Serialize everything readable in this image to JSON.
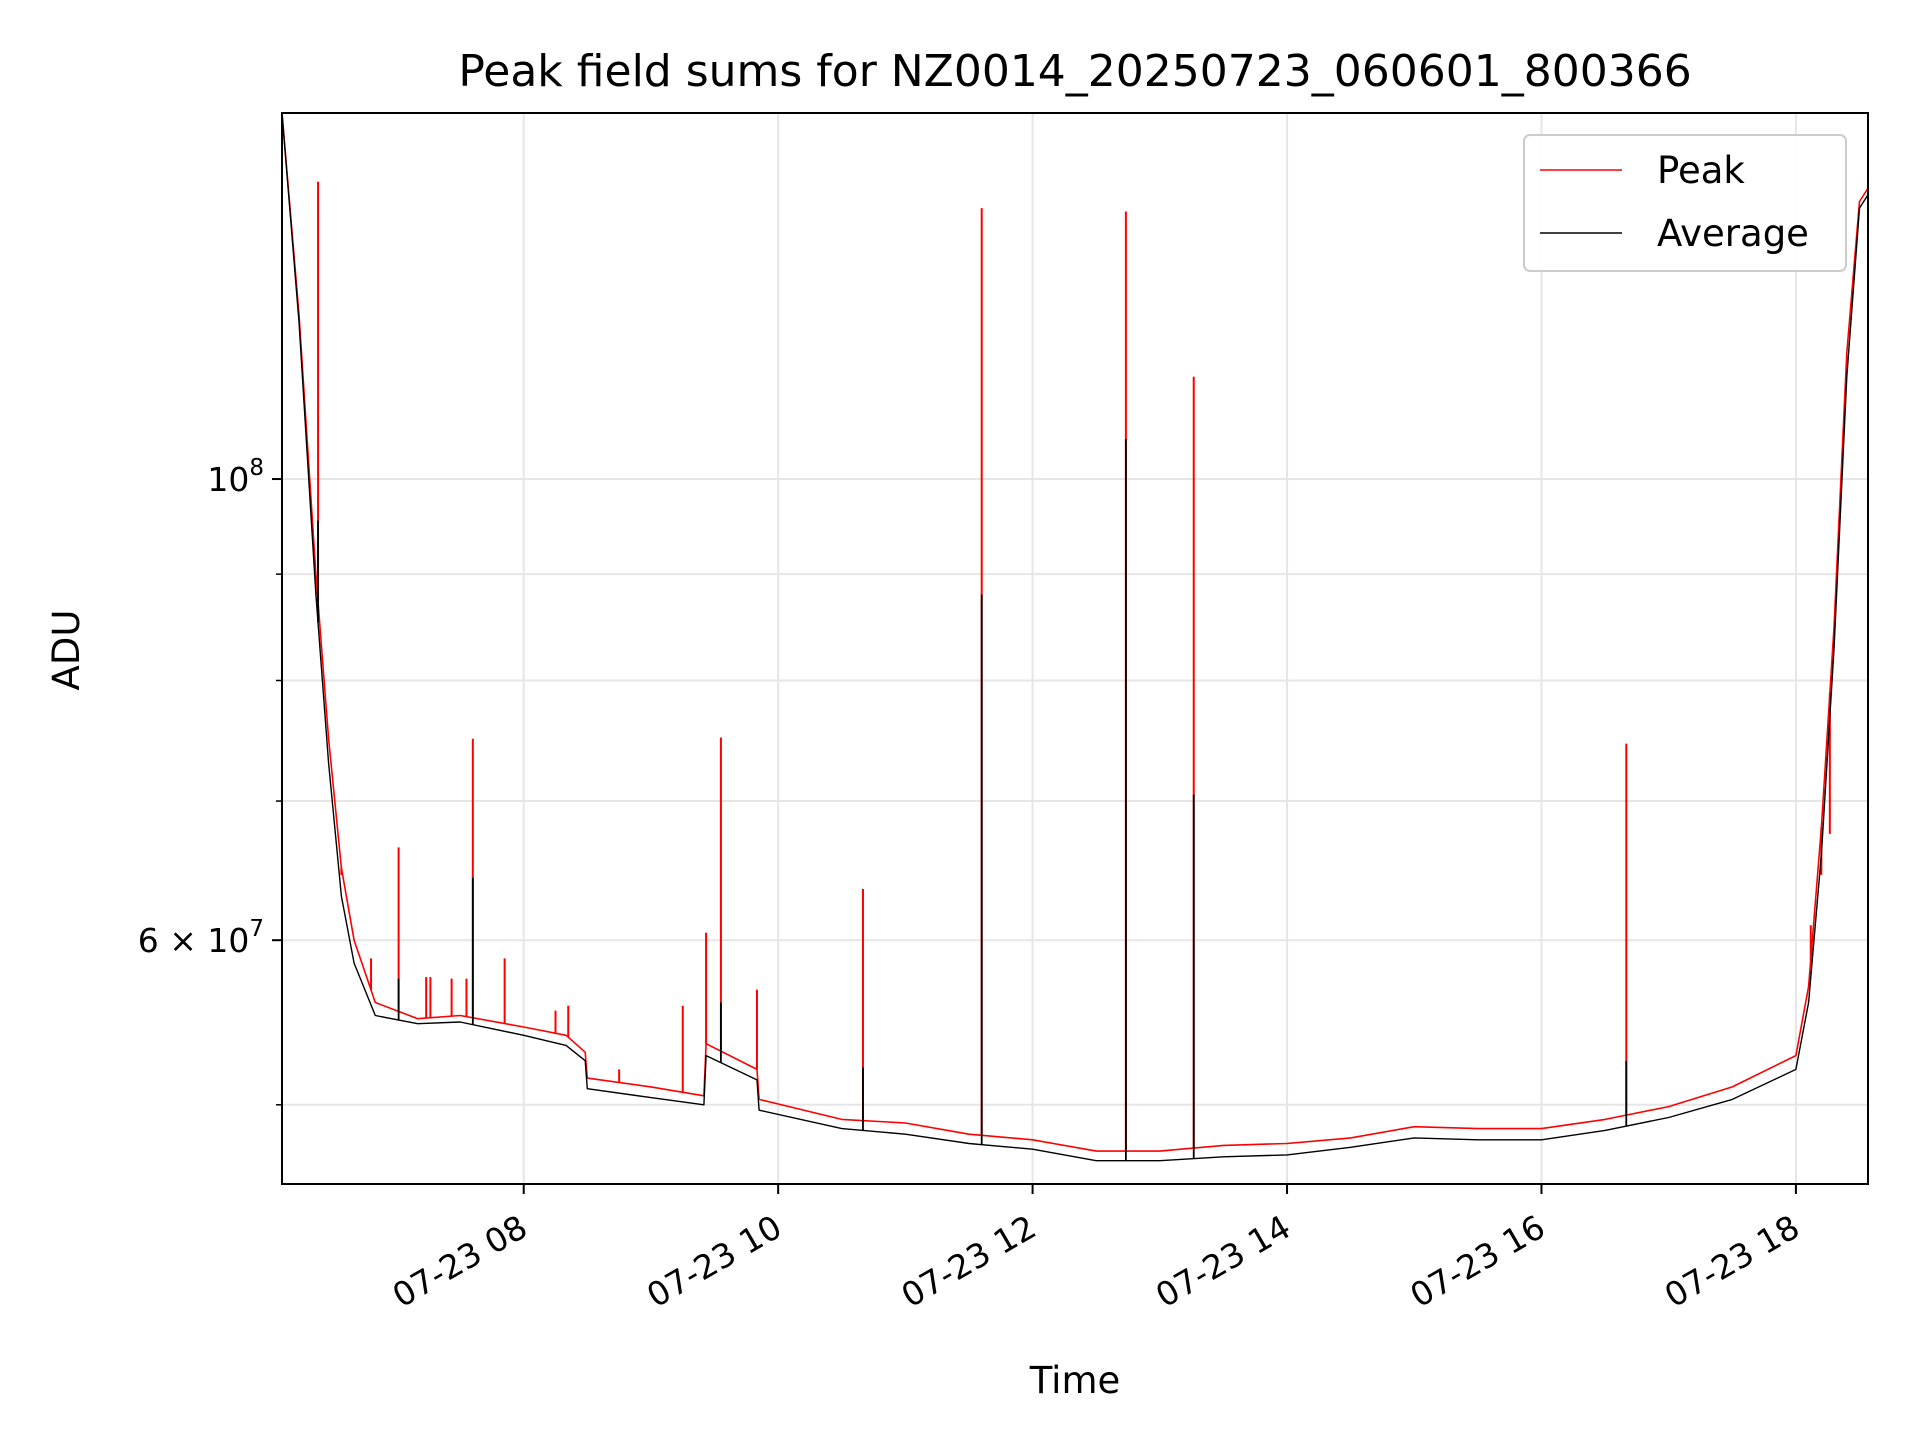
{
  "chart_data": {
    "type": "line",
    "title": "Peak field sums for NZ0014_20250723_060601_800366",
    "xlabel": "Time",
    "ylabel": "ADU",
    "y_scale": "log",
    "xlim": [
      "2025-07-23 06:06",
      "2025-07-23 18:34"
    ],
    "ylim": [
      45800000,
      150000000
    ],
    "grid": true,
    "legend_position": "top-right",
    "x_ticks": [
      {
        "t": "2025-07-23 08:00",
        "label": "07-23 08"
      },
      {
        "t": "2025-07-23 10:00",
        "label": "07-23 10"
      },
      {
        "t": "2025-07-23 12:00",
        "label": "07-23 12"
      },
      {
        "t": "2025-07-23 14:00",
        "label": "07-23 14"
      },
      {
        "t": "2025-07-23 16:00",
        "label": "07-23 16"
      },
      {
        "t": "2025-07-23 18:00",
        "label": "07-23 18"
      }
    ],
    "y_ticks": [
      {
        "value": 60000000,
        "mantissa": "6 × 10",
        "exp": "7"
      },
      {
        "value": 100000000,
        "mantissa": "10",
        "exp": "8"
      }
    ],
    "y_minor_ticks": [
      50000000,
      70000000,
      80000000,
      90000000
    ],
    "series": [
      {
        "name": "Peak",
        "color": "#ff0000",
        "points": [
          [
            "2025-07-23 06:06",
            150000000
          ],
          [
            "2025-07-23 06:14",
            120000000
          ],
          [
            "2025-07-23 06:22",
            90000000
          ],
          [
            "2025-07-23 06:28",
            75000000
          ],
          [
            "2025-07-23 06:34",
            65000000
          ],
          [
            "2025-07-23 06:40",
            60000000
          ],
          [
            "2025-07-23 06:50",
            56000000
          ],
          [
            "2025-07-23 07:10",
            55000000
          ],
          [
            "2025-07-23 07:30",
            55200000
          ],
          [
            "2025-07-23 08:00",
            54500000
          ],
          [
            "2025-07-23 08:20",
            54000000
          ],
          [
            "2025-07-23 08:29",
            53000000
          ],
          [
            "2025-07-23 08:30",
            51500000
          ],
          [
            "2025-07-23 09:00",
            51000000
          ],
          [
            "2025-07-23 09:25",
            50500000
          ],
          [
            "2025-07-23 09:26",
            53500000
          ],
          [
            "2025-07-23 09:50",
            52000000
          ],
          [
            "2025-07-23 09:51",
            50300000
          ],
          [
            "2025-07-23 10:30",
            49200000
          ],
          [
            "2025-07-23 11:00",
            49000000
          ],
          [
            "2025-07-23 11:30",
            48400000
          ],
          [
            "2025-07-23 12:00",
            48100000
          ],
          [
            "2025-07-23 12:30",
            47500000
          ],
          [
            "2025-07-23 13:00",
            47500000
          ],
          [
            "2025-07-23 13:30",
            47800000
          ],
          [
            "2025-07-23 14:00",
            47900000
          ],
          [
            "2025-07-23 14:30",
            48200000
          ],
          [
            "2025-07-23 15:00",
            48800000
          ],
          [
            "2025-07-23 15:30",
            48700000
          ],
          [
            "2025-07-23 16:00",
            48700000
          ],
          [
            "2025-07-23 16:30",
            49200000
          ],
          [
            "2025-07-23 17:00",
            49900000
          ],
          [
            "2025-07-23 17:30",
            51000000
          ],
          [
            "2025-07-23 18:00",
            52800000
          ],
          [
            "2025-07-23 18:06",
            57000000
          ],
          [
            "2025-07-23 18:12",
            68000000
          ],
          [
            "2025-07-23 18:18",
            85000000
          ],
          [
            "2025-07-23 18:24",
            115000000
          ],
          [
            "2025-07-23 18:30",
            136000000
          ],
          [
            "2025-07-23 18:34",
            138000000
          ]
        ],
        "spikes": [
          [
            "2025-07-23 06:23",
            139000000
          ],
          [
            "2025-07-23 06:34",
            64500000
          ],
          [
            "2025-07-23 06:48",
            58800000
          ],
          [
            "2025-07-23 07:01",
            66500000
          ],
          [
            "2025-07-23 07:14",
            57600000
          ],
          [
            "2025-07-23 07:16",
            57600000
          ],
          [
            "2025-07-23 07:26",
            57500000
          ],
          [
            "2025-07-23 07:33",
            57500000
          ],
          [
            "2025-07-23 07:36",
            75000000
          ],
          [
            "2025-07-23 07:51",
            58800000
          ],
          [
            "2025-07-23 08:15",
            55500000
          ],
          [
            "2025-07-23 08:21",
            55800000
          ],
          [
            "2025-07-23 08:45",
            52000000
          ],
          [
            "2025-07-23 09:15",
            55800000
          ],
          [
            "2025-07-23 09:26",
            60500000
          ],
          [
            "2025-07-23 09:33",
            75100000
          ],
          [
            "2025-07-23 09:50",
            56800000
          ],
          [
            "2025-07-23 10:40",
            63500000
          ],
          [
            "2025-07-23 11:36",
            135000000
          ],
          [
            "2025-07-23 12:44",
            134500000
          ],
          [
            "2025-07-23 13:16",
            112000000
          ],
          [
            "2025-07-23 16:40",
            74600000
          ],
          [
            "2025-07-23 18:07",
            61000000
          ],
          [
            "2025-07-23 18:12",
            64500000
          ],
          [
            "2025-07-23 18:16",
            67500000
          ]
        ]
      },
      {
        "name": "Average",
        "color": "#000000",
        "points": [
          [
            "2025-07-23 06:06",
            150000000
          ],
          [
            "2025-07-23 06:14",
            119000000
          ],
          [
            "2025-07-23 06:22",
            88000000
          ],
          [
            "2025-07-23 06:28",
            73000000
          ],
          [
            "2025-07-23 06:34",
            63000000
          ],
          [
            "2025-07-23 06:40",
            58500000
          ],
          [
            "2025-07-23 06:50",
            55200000
          ],
          [
            "2025-07-23 07:10",
            54700000
          ],
          [
            "2025-07-23 07:30",
            54800000
          ],
          [
            "2025-07-23 08:00",
            54000000
          ],
          [
            "2025-07-23 08:20",
            53400000
          ],
          [
            "2025-07-23 08:29",
            52500000
          ],
          [
            "2025-07-23 08:30",
            50900000
          ],
          [
            "2025-07-23 09:00",
            50400000
          ],
          [
            "2025-07-23 09:25",
            50000000
          ],
          [
            "2025-07-23 09:26",
            52800000
          ],
          [
            "2025-07-23 09:50",
            51400000
          ],
          [
            "2025-07-23 09:51",
            49700000
          ],
          [
            "2025-07-23 10:30",
            48700000
          ],
          [
            "2025-07-23 11:00",
            48400000
          ],
          [
            "2025-07-23 11:30",
            47900000
          ],
          [
            "2025-07-23 12:00",
            47600000
          ],
          [
            "2025-07-23 12:30",
            47000000
          ],
          [
            "2025-07-23 13:00",
            47000000
          ],
          [
            "2025-07-23 13:30",
            47200000
          ],
          [
            "2025-07-23 14:00",
            47300000
          ],
          [
            "2025-07-23 14:30",
            47700000
          ],
          [
            "2025-07-23 15:00",
            48200000
          ],
          [
            "2025-07-23 15:30",
            48100000
          ],
          [
            "2025-07-23 16:00",
            48100000
          ],
          [
            "2025-07-23 16:30",
            48600000
          ],
          [
            "2025-07-23 17:00",
            49300000
          ],
          [
            "2025-07-23 17:30",
            50300000
          ],
          [
            "2025-07-23 18:00",
            52000000
          ],
          [
            "2025-07-23 18:06",
            56000000
          ],
          [
            "2025-07-23 18:12",
            66000000
          ],
          [
            "2025-07-23 18:18",
            83000000
          ],
          [
            "2025-07-23 18:24",
            112000000
          ],
          [
            "2025-07-23 18:30",
            135000000
          ],
          [
            "2025-07-23 18:34",
            137000000
          ]
        ],
        "spikes": [
          [
            "2025-07-23 06:23",
            95500000
          ],
          [
            "2025-07-23 07:01",
            57500000
          ],
          [
            "2025-07-23 07:36",
            64300000
          ],
          [
            "2025-07-23 09:33",
            56000000
          ],
          [
            "2025-07-23 10:40",
            52100000
          ],
          [
            "2025-07-23 11:36",
            88000000
          ],
          [
            "2025-07-23 12:44",
            104500000
          ],
          [
            "2025-07-23 13:16",
            70500000
          ],
          [
            "2025-07-23 16:40",
            52500000
          ]
        ]
      }
    ]
  }
}
